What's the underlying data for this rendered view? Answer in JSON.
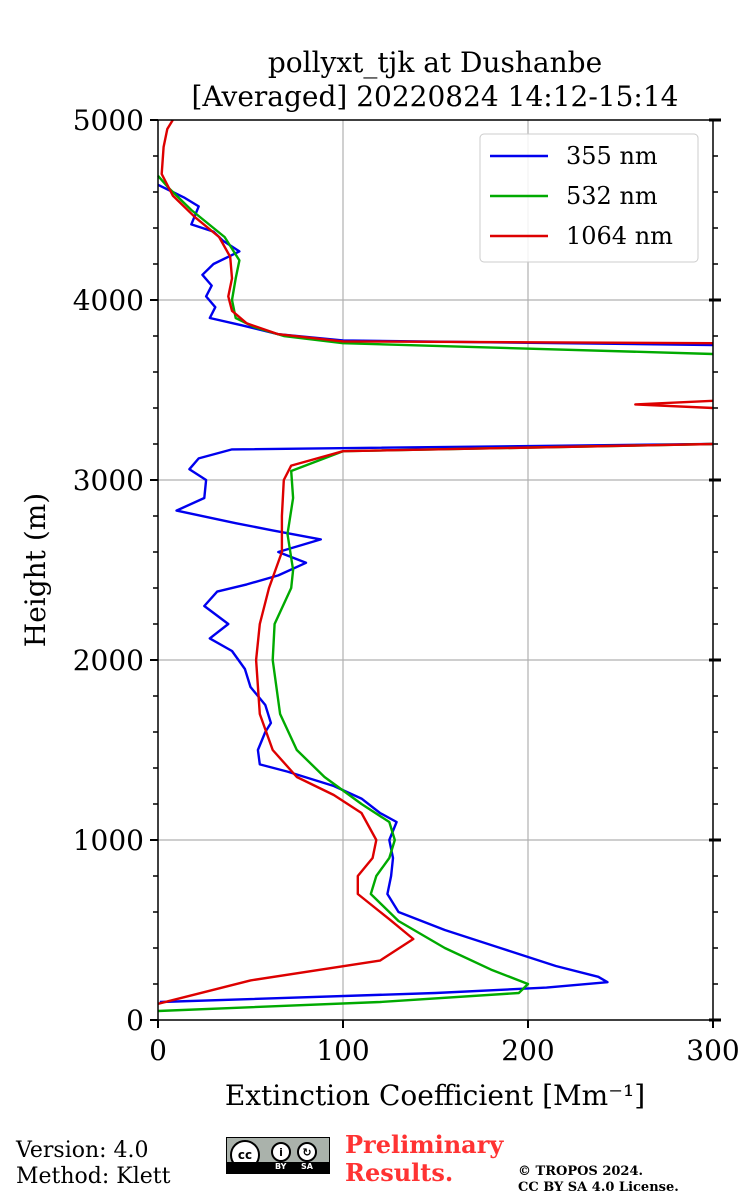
{
  "chart_data": {
    "type": "line",
    "title": "pollyxt_tjk at Dushanbe",
    "subtitle": "[Averaged] 20220824 14:12-15:14",
    "xlabel": "Extinction Coefficient [Mm⁻¹]",
    "ylabel": "Height (m)",
    "xlim": [
      0,
      300
    ],
    "ylim": [
      0,
      5000
    ],
    "xticks": [
      "0",
      "100",
      "200",
      "300"
    ],
    "yticks": [
      "0",
      "1000",
      "2000",
      "3000",
      "4000",
      "5000"
    ],
    "xtick_values": [
      0,
      100,
      200,
      300
    ],
    "ytick_values": [
      0,
      1000,
      2000,
      3000,
      4000,
      5000
    ],
    "grid": true,
    "legend_position": "top-right",
    "series": [
      {
        "name": "355 nm",
        "color": "#0000ee",
        "points": [
          [
            1,
            100
          ],
          [
            150,
            150
          ],
          [
            210,
            180
          ],
          [
            243,
            210
          ],
          [
            238,
            240
          ],
          [
            215,
            300
          ],
          [
            185,
            400
          ],
          [
            155,
            500
          ],
          [
            130,
            600
          ],
          [
            124,
            700
          ],
          [
            126,
            800
          ],
          [
            127,
            900
          ],
          [
            125,
            1000
          ],
          [
            129,
            1100
          ],
          [
            120,
            1150
          ],
          [
            110,
            1230
          ],
          [
            95,
            1300
          ],
          [
            70,
            1380
          ],
          [
            55,
            1420
          ],
          [
            54,
            1500
          ],
          [
            58,
            1600
          ],
          [
            61,
            1650
          ],
          [
            58,
            1750
          ],
          [
            50,
            1850
          ],
          [
            47,
            1950
          ],
          [
            40,
            2050
          ],
          [
            28,
            2120
          ],
          [
            38,
            2200
          ],
          [
            25,
            2300
          ],
          [
            32,
            2380
          ],
          [
            48,
            2420
          ],
          [
            65,
            2470
          ],
          [
            80,
            2540
          ],
          [
            65,
            2600
          ],
          [
            88,
            2670
          ],
          [
            62,
            2720
          ],
          [
            42,
            2760
          ],
          [
            10,
            2830
          ],
          [
            25,
            2900
          ],
          [
            26,
            3000
          ],
          [
            17,
            3060
          ],
          [
            22,
            3120
          ],
          [
            40,
            3170
          ],
          [
            300,
            3200
          ]
        ]
      },
      {
        "name": "355 nm (upper)",
        "color": "#0000ee",
        "points": [
          [
            300,
            3750
          ],
          [
            100,
            3775
          ],
          [
            65,
            3810
          ],
          [
            45,
            3860
          ],
          [
            28,
            3900
          ],
          [
            31,
            3960
          ],
          [
            26,
            4020
          ],
          [
            29,
            4080
          ],
          [
            24,
            4140
          ],
          [
            30,
            4200
          ],
          [
            44,
            4270
          ],
          [
            35,
            4330
          ],
          [
            30,
            4380
          ],
          [
            18,
            4420
          ],
          [
            20,
            4470
          ],
          [
            22,
            4520
          ],
          [
            14,
            4570
          ],
          [
            8,
            4600
          ],
          [
            0,
            4640
          ]
        ]
      },
      {
        "name": "532 nm",
        "color": "#00aa00",
        "points": [
          [
            0,
            50
          ],
          [
            120,
            100
          ],
          [
            195,
            150
          ],
          [
            200,
            200
          ],
          [
            180,
            280
          ],
          [
            155,
            400
          ],
          [
            130,
            550
          ],
          [
            115,
            700
          ],
          [
            118,
            800
          ],
          [
            125,
            900
          ],
          [
            128,
            1000
          ],
          [
            125,
            1100
          ],
          [
            110,
            1200
          ],
          [
            90,
            1350
          ],
          [
            75,
            1500
          ],
          [
            66,
            1700
          ],
          [
            62,
            2000
          ],
          [
            63,
            2200
          ],
          [
            72,
            2400
          ],
          [
            73,
            2500
          ],
          [
            70,
            2700
          ],
          [
            73,
            2900
          ],
          [
            72,
            3050
          ],
          [
            100,
            3160
          ],
          [
            300,
            3200
          ]
        ]
      },
      {
        "name": "532 nm (upper)",
        "color": "#00aa00",
        "points": [
          [
            300,
            3700
          ],
          [
            100,
            3760
          ],
          [
            68,
            3800
          ],
          [
            52,
            3850
          ],
          [
            42,
            3900
          ],
          [
            40,
            4000
          ],
          [
            42,
            4120
          ],
          [
            44,
            4220
          ],
          [
            36,
            4350
          ],
          [
            18,
            4500
          ],
          [
            6,
            4620
          ],
          [
            0,
            4690
          ]
        ]
      },
      {
        "name": "1064 nm",
        "color": "#dd0000",
        "points": [
          [
            0,
            90
          ],
          [
            50,
            220
          ],
          [
            120,
            330
          ],
          [
            138,
            450
          ],
          [
            125,
            560
          ],
          [
            108,
            700
          ],
          [
            108,
            800
          ],
          [
            116,
            900
          ],
          [
            118,
            1000
          ],
          [
            110,
            1150
          ],
          [
            95,
            1250
          ],
          [
            75,
            1350
          ],
          [
            62,
            1500
          ],
          [
            55,
            1700
          ],
          [
            53,
            2000
          ],
          [
            55,
            2200
          ],
          [
            60,
            2400
          ],
          [
            67,
            2600
          ],
          [
            67,
            2800
          ],
          [
            68,
            3000
          ],
          [
            72,
            3080
          ],
          [
            100,
            3160
          ],
          [
            300,
            3200
          ]
        ]
      },
      {
        "name": "1064 nm (layer)",
        "color": "#dd0000",
        "points": [
          [
            300,
            3440
          ],
          [
            258,
            3420
          ],
          [
            300,
            3400
          ]
        ]
      },
      {
        "name": "1064 nm (upper)",
        "color": "#dd0000",
        "points": [
          [
            300,
            3760
          ],
          [
            100,
            3770
          ],
          [
            65,
            3810
          ],
          [
            48,
            3870
          ],
          [
            40,
            3940
          ],
          [
            38,
            4020
          ],
          [
            40,
            4120
          ],
          [
            39,
            4240
          ],
          [
            33,
            4350
          ],
          [
            20,
            4460
          ],
          [
            8,
            4580
          ],
          [
            2,
            4700
          ],
          [
            3,
            4850
          ],
          [
            5,
            4950
          ],
          [
            8,
            5000
          ]
        ]
      }
    ],
    "legend": [
      {
        "label": "355 nm",
        "color": "#0000ee"
      },
      {
        "label": "532 nm",
        "color": "#00aa00"
      },
      {
        "label": "1064 nm",
        "color": "#dd0000"
      }
    ]
  },
  "footer": {
    "version": "Version: 4.0",
    "method": "Method: Klett",
    "license_badge": {
      "cc": "cc",
      "by": "BY",
      "sa": "SA",
      "by_icon": "i",
      "sa_icon": "↻"
    },
    "preliminary_line1": "Preliminary",
    "preliminary_line2": "Results.",
    "copyright_line1": "© TROPOS 2024.",
    "copyright_line2": "CC BY SA 4.0 License."
  }
}
